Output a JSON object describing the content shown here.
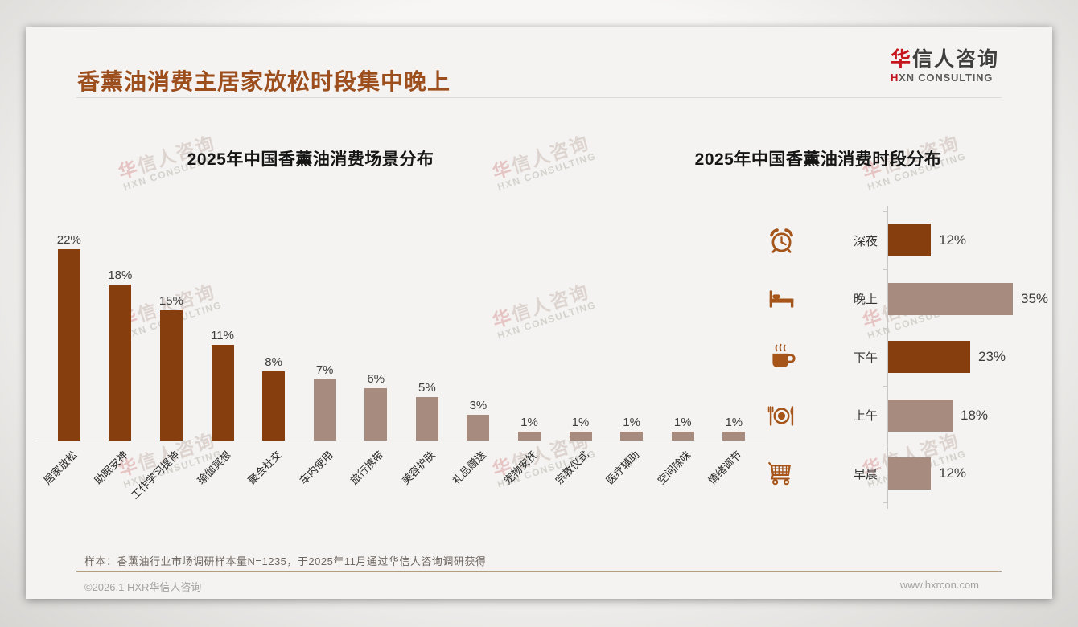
{
  "header": {
    "title": "香薰油消费主居家放松时段集中晚上",
    "logo": {
      "cn_first": "华",
      "cn_rest": "信人咨询",
      "en_first": "H",
      "en_rest": "XN CONSULTING"
    }
  },
  "watermark": {
    "line1_first": "华",
    "line1_rest": "信人咨询",
    "line2": "HXN CONSULTING"
  },
  "colors": {
    "dark": "#873E0F",
    "light": "#A78B7F",
    "icon": "#A5541A",
    "title": "#9D4E1D",
    "logo_red": "#C4161C"
  },
  "chart_data": [
    {
      "type": "bar",
      "orientation": "vertical",
      "title": "2025年中国香薰油消费场景分布",
      "unit": "%",
      "categories": [
        "居家放松",
        "助眠安神",
        "工作学习提神",
        "瑜伽冥想",
        "聚会社交",
        "车内使用",
        "旅行携带",
        "美容护肤",
        "礼品赠送",
        "宠物安抚",
        "宗教仪式",
        "医疗辅助",
        "空间除味",
        "情绪调节"
      ],
      "values": [
        22,
        18,
        15,
        11,
        8,
        7,
        6,
        5,
        3,
        1,
        1,
        1,
        1,
        1
      ],
      "bar_styles": [
        "dark",
        "dark",
        "dark",
        "dark",
        "dark",
        "light",
        "light",
        "light",
        "light",
        "light",
        "light",
        "light",
        "light",
        "light"
      ],
      "ylim": [
        0,
        25
      ],
      "grid": false,
      "value_labels_shown": true
    },
    {
      "type": "bar",
      "orientation": "horizontal",
      "title": "2025年中国香薰油消费时段分布",
      "unit": "%",
      "categories": [
        "深夜",
        "晚上",
        "下午",
        "上午",
        "早晨"
      ],
      "values": [
        12,
        35,
        23,
        18,
        12
      ],
      "bar_styles": [
        "dark",
        "light",
        "dark",
        "light",
        "light"
      ],
      "icons": [
        "alarm-clock",
        "bed",
        "hot-drink",
        "dining",
        "shopping-cart"
      ],
      "xlim": [
        0,
        40
      ],
      "grid": false,
      "value_labels_shown": true
    }
  ],
  "footer": {
    "note": "样本：香薰油行业市场调研样本量N=1235，于2025年11月通过华信人咨询调研获得",
    "copyright": "©2026.1 HXR华信人咨询",
    "url": "www.hxrcon.com"
  }
}
